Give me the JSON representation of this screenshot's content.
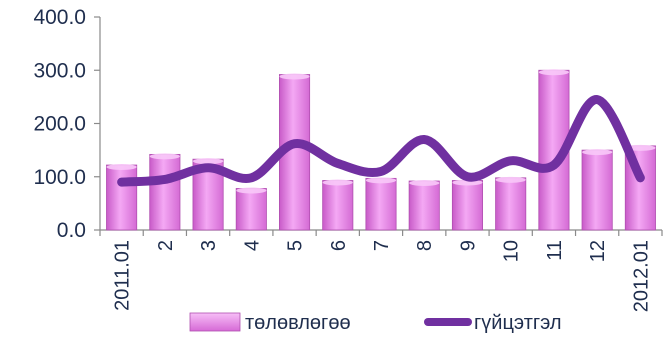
{
  "chart_data": {
    "type": "bar",
    "title": "",
    "xlabel": "",
    "ylabel": "",
    "categories": [
      "2011.01",
      "2",
      "3",
      "4",
      "5",
      "6",
      "7",
      "8",
      "9",
      "10",
      "11",
      "12",
      "2012.01"
    ],
    "y_ticks": [
      "0.0",
      "100.0",
      "200.0",
      "300.0",
      "400.0"
    ],
    "ylim": [
      0,
      400
    ],
    "grid": false,
    "legend_position": "bottom",
    "series": [
      {
        "name": "төлөвлөгөө",
        "type": "bar",
        "color": "#ee82ee",
        "values": [
          122,
          142,
          133,
          78,
          292,
          93,
          97,
          92,
          93,
          98,
          300,
          150,
          158
        ]
      },
      {
        "name": "гүйцэтгэл",
        "type": "line",
        "color": "#7030a0",
        "values": [
          90,
          95,
          117,
          98,
          162,
          125,
          110,
          170,
          100,
          130,
          122,
          245,
          98
        ]
      }
    ]
  }
}
